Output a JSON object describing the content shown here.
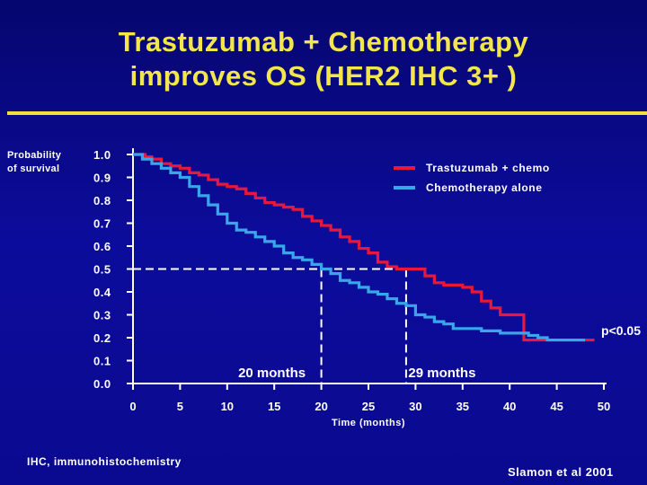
{
  "slide": {
    "title_line1": "Trastuzumab + Chemotherapy",
    "title_line2": "improves OS (HER2 IHC 3+ )",
    "footnote": "IHC, immunohistochemistry",
    "citation": "Slamon et al 2001",
    "colors": {
      "background": "#0a0a8c",
      "title": "#f2e64a",
      "rule": "#f0e040"
    }
  },
  "chart_data": {
    "type": "line",
    "title": "",
    "xlabel": "Time (months)",
    "ylabel": "Probability of survival",
    "xlim": [
      0,
      50
    ],
    "ylim": [
      0,
      1.0
    ],
    "x_ticks": [
      "0",
      "5",
      "10",
      "15",
      "20",
      "25",
      "30",
      "35",
      "40",
      "45",
      "50"
    ],
    "y_ticks": [
      "0.0",
      "0.1",
      "0.2",
      "0.3",
      "0.4",
      "0.5",
      "0.6",
      "0.7",
      "0.8",
      "0.9",
      "1.0"
    ],
    "legend_placement": "top-right",
    "series": [
      {
        "name": "Trastuzumab + chemo",
        "color": "#e8183c",
        "points": [
          [
            0,
            1.0
          ],
          [
            1,
            1.0
          ],
          [
            1.3,
            0.99
          ],
          [
            2,
            0.98
          ],
          [
            3,
            0.96
          ],
          [
            4,
            0.95
          ],
          [
            5,
            0.94
          ],
          [
            6,
            0.92
          ],
          [
            7,
            0.91
          ],
          [
            8,
            0.89
          ],
          [
            9,
            0.87
          ],
          [
            10,
            0.86
          ],
          [
            11,
            0.85
          ],
          [
            12,
            0.83
          ],
          [
            13,
            0.81
          ],
          [
            14,
            0.79
          ],
          [
            15,
            0.78
          ],
          [
            16,
            0.77
          ],
          [
            17,
            0.76
          ],
          [
            18,
            0.73
          ],
          [
            19,
            0.71
          ],
          [
            20,
            0.69
          ],
          [
            21,
            0.67
          ],
          [
            22,
            0.64
          ],
          [
            23,
            0.62
          ],
          [
            24,
            0.59
          ],
          [
            25,
            0.57
          ],
          [
            26,
            0.53
          ],
          [
            27,
            0.51
          ],
          [
            28,
            0.5
          ],
          [
            29,
            0.5
          ],
          [
            30,
            0.5
          ],
          [
            31,
            0.47
          ],
          [
            32,
            0.44
          ],
          [
            33,
            0.43
          ],
          [
            34,
            0.43
          ],
          [
            35,
            0.42
          ],
          [
            36,
            0.4
          ],
          [
            37,
            0.36
          ],
          [
            38,
            0.33
          ],
          [
            39,
            0.3
          ],
          [
            40,
            0.3
          ],
          [
            41,
            0.3
          ],
          [
            41.5,
            0.19
          ],
          [
            44,
            0.19
          ],
          [
            48,
            0.19
          ],
          [
            49,
            0.19
          ]
        ]
      },
      {
        "name": "Chemotherapy alone",
        "color": "#3aa6ea",
        "points": [
          [
            0,
            1.0
          ],
          [
            1,
            0.98
          ],
          [
            2,
            0.96
          ],
          [
            3,
            0.94
          ],
          [
            4,
            0.92
          ],
          [
            5,
            0.9
          ],
          [
            6,
            0.86
          ],
          [
            7,
            0.82
          ],
          [
            8,
            0.78
          ],
          [
            9,
            0.74
          ],
          [
            10,
            0.7
          ],
          [
            11,
            0.67
          ],
          [
            12,
            0.66
          ],
          [
            13,
            0.64
          ],
          [
            14,
            0.62
          ],
          [
            15,
            0.6
          ],
          [
            16,
            0.57
          ],
          [
            17,
            0.55
          ],
          [
            18,
            0.54
          ],
          [
            19,
            0.52
          ],
          [
            20,
            0.5
          ],
          [
            21,
            0.48
          ],
          [
            22,
            0.45
          ],
          [
            23,
            0.44
          ],
          [
            24,
            0.42
          ],
          [
            25,
            0.4
          ],
          [
            26,
            0.39
          ],
          [
            27,
            0.37
          ],
          [
            28,
            0.35
          ],
          [
            29,
            0.34
          ],
          [
            30,
            0.3
          ],
          [
            31,
            0.29
          ],
          [
            32,
            0.27
          ],
          [
            33,
            0.26
          ],
          [
            34,
            0.24
          ],
          [
            35,
            0.24
          ],
          [
            36,
            0.24
          ],
          [
            37,
            0.23
          ],
          [
            38,
            0.23
          ],
          [
            39,
            0.22
          ],
          [
            40,
            0.22
          ],
          [
            41,
            0.22
          ],
          [
            42,
            0.21
          ],
          [
            43,
            0.2
          ],
          [
            44,
            0.19
          ],
          [
            48,
            0.19
          ]
        ]
      }
    ],
    "medians": [
      {
        "label": "20 months",
        "x": 20,
        "y": 0.5
      },
      {
        "label": "29 months",
        "x": 29,
        "y": 0.5
      }
    ],
    "annotation": "p<0.05"
  }
}
